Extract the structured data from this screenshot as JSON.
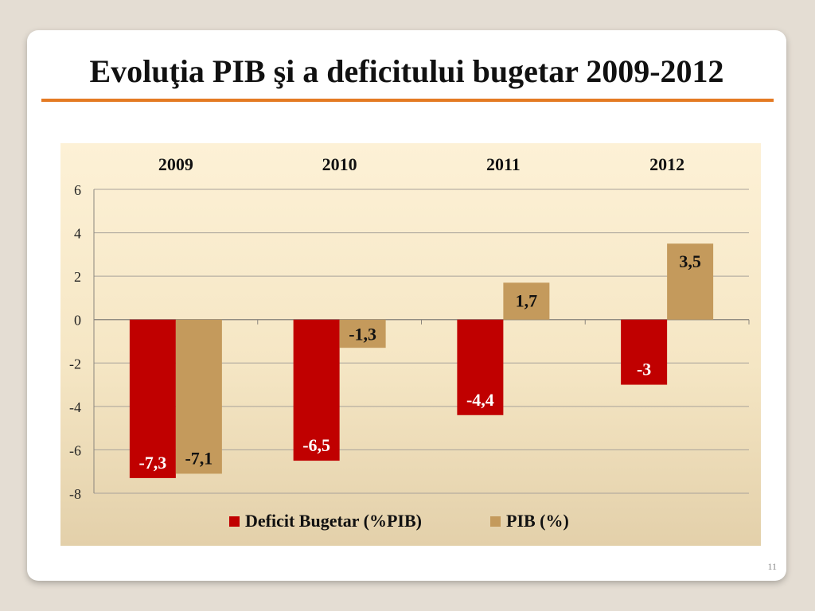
{
  "slide": {
    "title": "Evoluţia PIB şi a deficitului bugetar 2009-2012",
    "page_number": "11"
  },
  "colors": {
    "background": "#e4ddd3",
    "accent_rule": "#e47a23",
    "deficit": "#c00000",
    "pib": "#c49a5c"
  },
  "chart_data": {
    "type": "bar",
    "categories": [
      "2009",
      "2010",
      "2011",
      "2012"
    ],
    "category_axis_position": "top",
    "series": [
      {
        "name": "Deficit Bugetar (%PIB)",
        "values": [
          -7.3,
          -6.5,
          -4.4,
          -3.0
        ],
        "labels": [
          "-7,3",
          "-6,5",
          "-4,4",
          "-3"
        ],
        "label_color": "#ffffff"
      },
      {
        "name": "PIB (%)",
        "values": [
          -7.1,
          -1.3,
          1.7,
          3.5
        ],
        "labels": [
          "-7,1",
          "-1,3",
          "1,7",
          "3,5"
        ],
        "label_color": "#111111"
      }
    ],
    "ylim": [
      -8,
      6
    ],
    "yticks": [
      6,
      4,
      2,
      0,
      -2,
      -4,
      -6,
      -8
    ],
    "grid": true,
    "legend": "bottom"
  }
}
